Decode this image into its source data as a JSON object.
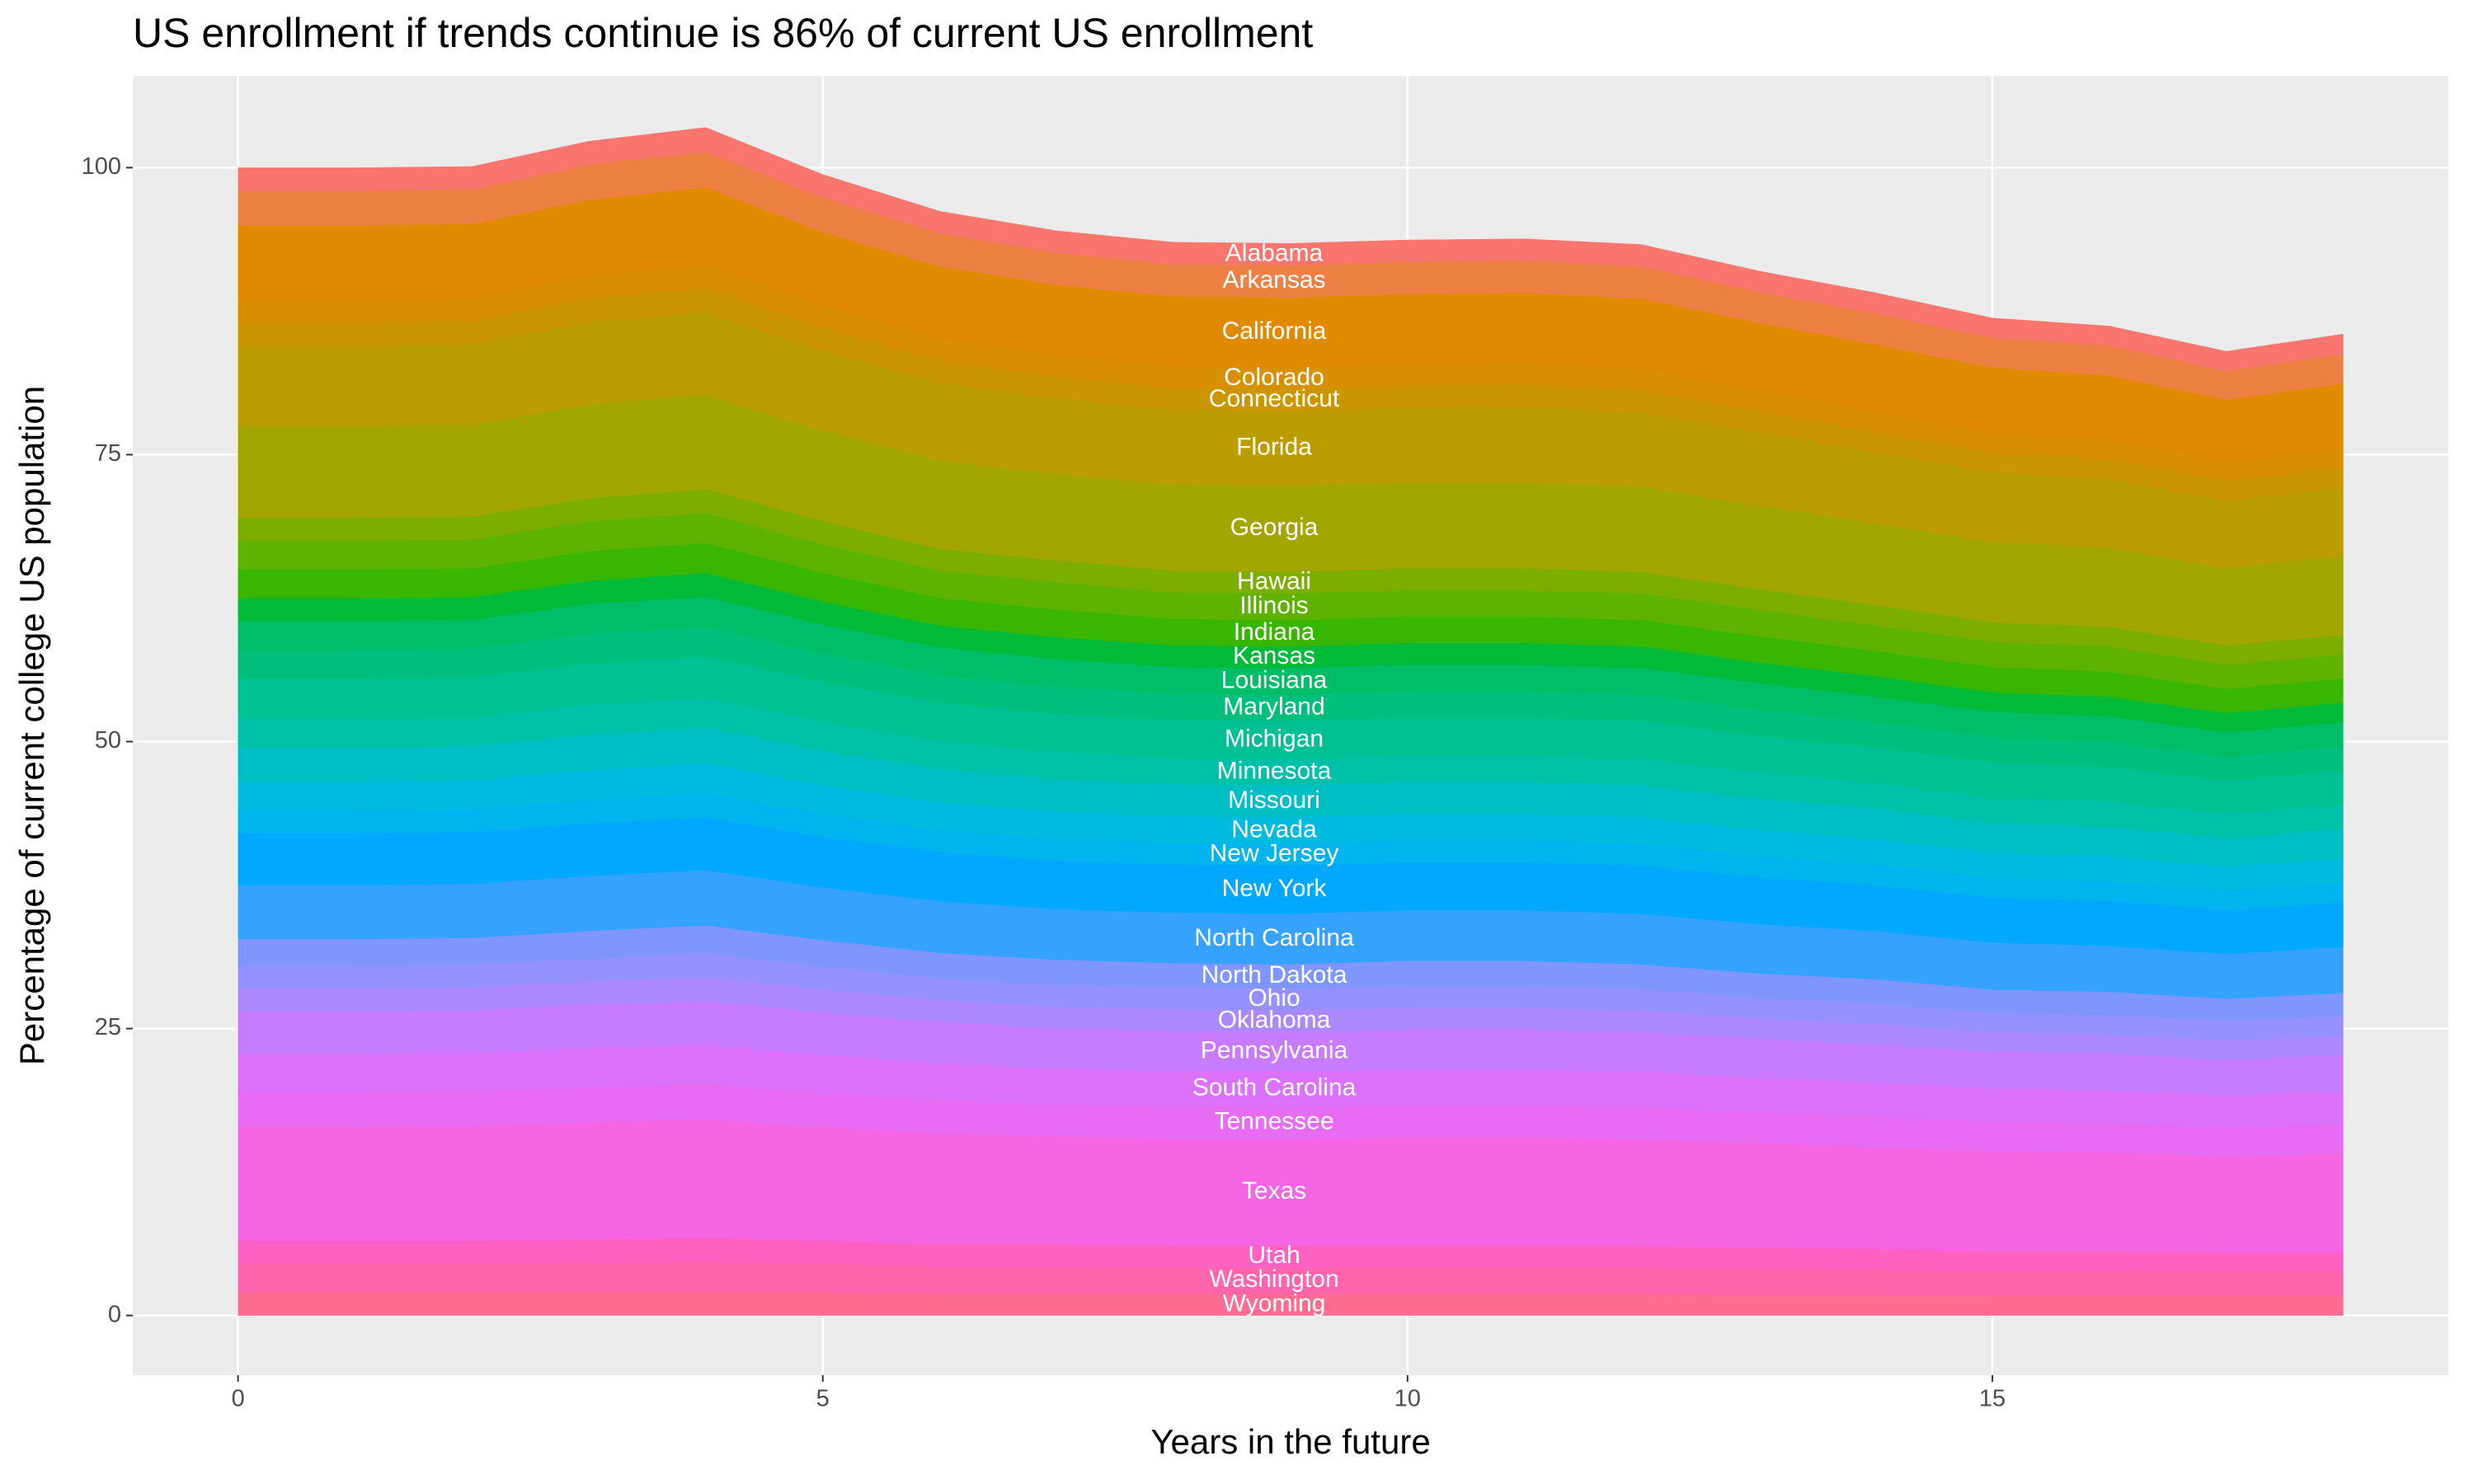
{
  "chart_data": {
    "type": "stacked_area",
    "title": "US enrollment if trends continue is 86% of current US enrollment",
    "x_label": "Years in the future",
    "y_label": "Percentage of current college US population",
    "x": [
      0,
      1,
      2,
      3,
      4,
      5,
      6,
      7,
      8,
      9,
      10,
      11,
      12,
      13,
      14,
      15,
      16,
      17,
      18
    ],
    "xlim": [
      -0.9,
      18.9
    ],
    "xticks": [
      0,
      5,
      10,
      15
    ],
    "ylim": [
      -5.2,
      108
    ],
    "yticks": [
      0,
      25,
      50,
      75,
      100
    ],
    "grid": true,
    "label_x": 9,
    "series": [
      {
        "name": "Alabama",
        "color": "#F8766D",
        "values": [
          2.0,
          2.0,
          2.0,
          2.0,
          2.1,
          2.0,
          1.9,
          1.9,
          1.9,
          1.9,
          1.9,
          1.9,
          1.9,
          1.8,
          1.8,
          1.7,
          1.7,
          1.7,
          1.7
        ]
      },
      {
        "name": "Arkansas",
        "color": "#EE8043",
        "values": [
          3.0,
          3.0,
          3.0,
          3.1,
          3.1,
          3.0,
          2.9,
          2.8,
          2.8,
          2.8,
          2.8,
          2.8,
          2.8,
          2.7,
          2.7,
          2.6,
          2.6,
          2.5,
          2.6
        ]
      },
      {
        "name": "California",
        "color": "#E18A00",
        "values": [
          6.5,
          6.5,
          6.5,
          6.6,
          6.7,
          6.4,
          6.3,
          6.1,
          6.1,
          6.1,
          6.1,
          6.1,
          6.1,
          5.9,
          5.8,
          5.7,
          5.6,
          5.4,
          5.6
        ]
      },
      {
        "name": "Colorado",
        "color": "#D89000",
        "values": [
          2.0,
          2.0,
          2.0,
          2.0,
          2.1,
          2.0,
          1.9,
          1.9,
          1.9,
          1.9,
          1.9,
          1.9,
          1.9,
          1.8,
          1.8,
          1.7,
          1.7,
          1.7,
          1.7
        ]
      },
      {
        "name": "Connecticut",
        "color": "#CB9600",
        "values": [
          2.0,
          2.0,
          2.0,
          2.0,
          2.1,
          2.0,
          1.9,
          1.9,
          1.9,
          1.9,
          1.9,
          1.9,
          1.9,
          1.8,
          1.8,
          1.7,
          1.7,
          1.7,
          1.7
        ]
      },
      {
        "name": "Florida",
        "color": "#BB9D00",
        "values": [
          7.0,
          7.0,
          7.0,
          7.2,
          7.2,
          6.9,
          6.8,
          6.6,
          6.5,
          6.5,
          6.5,
          6.6,
          6.5,
          6.4,
          6.2,
          6.1,
          6.0,
          5.9,
          6.0
        ]
      },
      {
        "name": "Georgia",
        "color": "#A3A500",
        "values": [
          8.0,
          8.0,
          8.0,
          8.2,
          8.2,
          7.9,
          7.7,
          7.5,
          7.5,
          7.5,
          7.5,
          7.5,
          7.4,
          7.3,
          7.1,
          7.0,
          6.9,
          6.7,
          6.9
        ]
      },
      {
        "name": "Hawaii",
        "color": "#7CAE00",
        "values": [
          2.0,
          2.0,
          2.0,
          2.0,
          2.1,
          2.0,
          1.9,
          1.9,
          1.9,
          1.9,
          1.9,
          1.9,
          1.9,
          1.8,
          1.8,
          1.7,
          1.7,
          1.7,
          1.7
        ]
      },
      {
        "name": "Illinois",
        "color": "#5EB300",
        "values": [
          2.5,
          2.5,
          2.5,
          2.6,
          2.6,
          2.5,
          2.4,
          2.4,
          2.3,
          2.3,
          2.3,
          2.3,
          2.3,
          2.3,
          2.2,
          2.2,
          2.2,
          2.1,
          2.1
        ]
      },
      {
        "name": "Indiana",
        "color": "#39B600",
        "values": [
          2.5,
          2.5,
          2.5,
          2.6,
          2.6,
          2.5,
          2.4,
          2.4,
          2.3,
          2.3,
          2.3,
          2.3,
          2.3,
          2.3,
          2.2,
          2.2,
          2.2,
          2.1,
          2.1
        ]
      },
      {
        "name": "Kansas",
        "color": "#00BA38",
        "values": [
          2.0,
          2.0,
          2.0,
          2.0,
          2.1,
          2.0,
          1.9,
          1.9,
          1.9,
          1.9,
          1.9,
          1.9,
          1.9,
          1.8,
          1.8,
          1.7,
          1.7,
          1.7,
          1.7
        ]
      },
      {
        "name": "Louisiana",
        "color": "#00BE67",
        "values": [
          2.5,
          2.5,
          2.5,
          2.6,
          2.6,
          2.5,
          2.4,
          2.4,
          2.3,
          2.3,
          2.3,
          2.3,
          2.3,
          2.3,
          2.2,
          2.2,
          2.2,
          2.1,
          2.1
        ]
      },
      {
        "name": "Maryland",
        "color": "#00BF7D",
        "values": [
          2.5,
          2.5,
          2.5,
          2.6,
          2.6,
          2.5,
          2.4,
          2.4,
          2.3,
          2.3,
          2.3,
          2.3,
          2.3,
          2.3,
          2.2,
          2.2,
          2.2,
          2.1,
          2.1
        ]
      },
      {
        "name": "Michigan",
        "color": "#00C094",
        "values": [
          3.5,
          3.5,
          3.5,
          3.6,
          3.6,
          3.5,
          3.4,
          3.3,
          3.3,
          3.3,
          3.3,
          3.3,
          3.3,
          3.2,
          3.1,
          3.1,
          3.0,
          2.9,
          3.0
        ]
      },
      {
        "name": "Minnesota",
        "color": "#00C1A8",
        "values": [
          2.5,
          2.5,
          2.5,
          2.6,
          2.6,
          2.5,
          2.4,
          2.4,
          2.3,
          2.3,
          2.3,
          2.3,
          2.3,
          2.3,
          2.2,
          2.2,
          2.2,
          2.1,
          2.1
        ]
      },
      {
        "name": "Missouri",
        "color": "#00BFC4",
        "values": [
          3.0,
          3.0,
          3.0,
          3.1,
          3.1,
          3.0,
          2.9,
          2.8,
          2.8,
          2.8,
          2.8,
          2.8,
          2.8,
          2.7,
          2.7,
          2.6,
          2.6,
          2.5,
          2.6
        ]
      },
      {
        "name": "Nevada",
        "color": "#00BAE0",
        "values": [
          2.5,
          2.5,
          2.5,
          2.6,
          2.6,
          2.5,
          2.4,
          2.4,
          2.3,
          2.3,
          2.3,
          2.3,
          2.3,
          2.3,
          2.2,
          2.2,
          2.2,
          2.1,
          2.1
        ]
      },
      {
        "name": "New Jersey",
        "color": "#00B4EF",
        "values": [
          2.0,
          2.0,
          2.0,
          2.0,
          2.1,
          2.0,
          1.9,
          1.9,
          1.9,
          1.9,
          1.9,
          1.9,
          1.9,
          1.8,
          1.8,
          1.7,
          1.7,
          1.7,
          1.7
        ]
      },
      {
        "name": "New York",
        "color": "#00A9FF",
        "values": [
          4.5,
          4.5,
          4.5,
          4.6,
          4.6,
          4.4,
          4.3,
          4.2,
          4.2,
          4.2,
          4.2,
          4.2,
          4.2,
          4.1,
          4.0,
          3.9,
          3.9,
          3.8,
          3.9
        ]
      },
      {
        "name": "North Carolina",
        "color": "#35A2FF",
        "values": [
          4.7,
          4.7,
          4.7,
          4.8,
          4.8,
          4.6,
          4.5,
          4.4,
          4.4,
          4.4,
          4.4,
          4.4,
          4.4,
          4.3,
          4.2,
          4.1,
          4.0,
          3.9,
          4.0
        ]
      },
      {
        "name": "North Dakota",
        "color": "#7F96FF",
        "values": [
          2.3,
          2.3,
          2.3,
          2.4,
          2.4,
          2.3,
          2.2,
          2.2,
          2.1,
          2.1,
          2.2,
          2.2,
          2.1,
          2.1,
          2.1,
          2.0,
          2.0,
          1.9,
          2.0
        ]
      },
      {
        "name": "Ohio",
        "color": "#9590FF",
        "values": [
          2.0,
          2.0,
          2.0,
          2.0,
          2.1,
          2.0,
          1.9,
          1.9,
          1.9,
          1.9,
          1.9,
          1.9,
          1.9,
          1.8,
          1.8,
          1.7,
          1.7,
          1.7,
          1.7
        ]
      },
      {
        "name": "Oklahoma",
        "color": "#AC88FF",
        "values": [
          2.0,
          2.0,
          2.0,
          2.0,
          2.1,
          2.0,
          1.9,
          1.9,
          1.9,
          1.9,
          1.9,
          1.9,
          1.9,
          1.8,
          1.8,
          1.7,
          1.7,
          1.7,
          1.7
        ]
      },
      {
        "name": "Pennsylvania",
        "color": "#C77CFF",
        "values": [
          3.7,
          3.7,
          3.7,
          3.8,
          3.8,
          3.7,
          3.6,
          3.5,
          3.5,
          3.4,
          3.5,
          3.5,
          3.4,
          3.4,
          3.3,
          3.2,
          3.2,
          3.1,
          3.2
        ]
      },
      {
        "name": "South Carolina",
        "color": "#DC71FA",
        "values": [
          3.3,
          3.3,
          3.3,
          3.4,
          3.4,
          3.3,
          3.2,
          3.1,
          3.1,
          3.1,
          3.1,
          3.1,
          3.1,
          3.0,
          2.9,
          2.9,
          2.8,
          2.8,
          2.8
        ]
      },
      {
        "name": "Tennessee",
        "color": "#E76BF3",
        "values": [
          3.0,
          3.0,
          3.0,
          3.1,
          3.1,
          3.0,
          2.9,
          2.8,
          2.8,
          2.8,
          2.8,
          2.8,
          2.8,
          2.7,
          2.7,
          2.6,
          2.6,
          2.5,
          2.6
        ]
      },
      {
        "name": "Texas",
        "color": "#F564E3",
        "values": [
          10.0,
          10.0,
          10.1,
          10.2,
          10.3,
          9.9,
          9.7,
          9.4,
          9.3,
          9.3,
          9.4,
          9.4,
          9.3,
          9.1,
          8.9,
          8.7,
          8.6,
          8.4,
          8.6
        ]
      },
      {
        "name": "Utah",
        "color": "#FF61C3",
        "values": [
          2.0,
          2.0,
          2.0,
          2.0,
          2.1,
          2.0,
          1.9,
          1.9,
          1.9,
          1.9,
          1.9,
          1.9,
          1.9,
          1.8,
          1.8,
          1.7,
          1.7,
          1.7,
          1.7
        ]
      },
      {
        "name": "Washington",
        "color": "#FF65AC",
        "values": [
          2.5,
          2.5,
          2.5,
          2.6,
          2.6,
          2.5,
          2.4,
          2.4,
          2.3,
          2.3,
          2.3,
          2.3,
          2.3,
          2.3,
          2.2,
          2.2,
          2.2,
          2.1,
          2.1
        ]
      },
      {
        "name": "Wyoming",
        "color": "#FF6C91",
        "values": [
          2.0,
          2.0,
          2.0,
          2.0,
          2.1,
          2.0,
          1.9,
          1.9,
          1.9,
          1.9,
          1.9,
          1.9,
          1.9,
          1.8,
          1.8,
          1.7,
          1.7,
          1.7,
          1.7
        ]
      }
    ]
  }
}
